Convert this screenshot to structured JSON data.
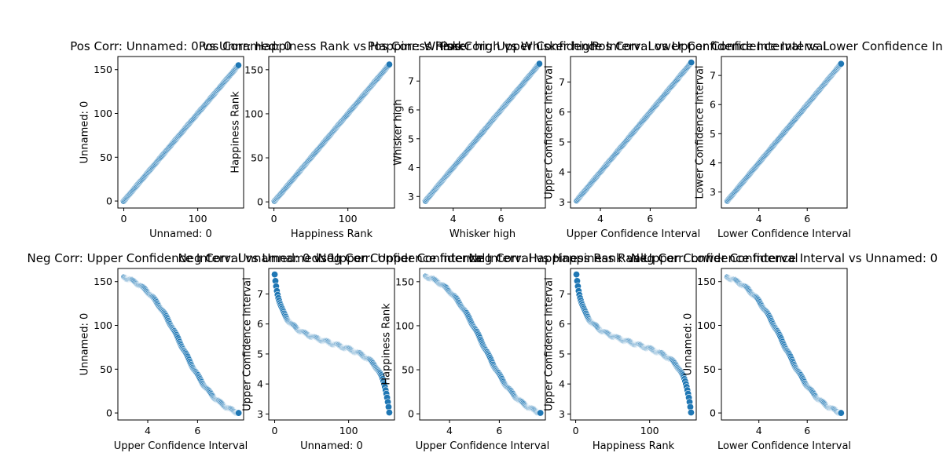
{
  "chart_data": [
    {
      "type": "scatter",
      "title": "Pos Corr: Unnamed: 0 vs Unnamed: 0",
      "xlabel": "Unnamed: 0",
      "ylabel": "Unnamed: 0",
      "xlim": [
        -8,
        162
      ],
      "ylim": [
        -8,
        165
      ],
      "xticks": [
        0,
        100
      ],
      "xticklabels": [
        "0",
        "100"
      ],
      "yticks": [
        0,
        50,
        100,
        150
      ],
      "yticklabels": [
        "0",
        "50",
        "100",
        "150"
      ],
      "series": [
        {
          "x_range": [
            0,
            155
          ],
          "y_range": [
            0,
            155
          ],
          "shape": "linear",
          "n": 156
        }
      ]
    },
    {
      "type": "scatter",
      "title": "Pos Corr: Happiness Rank vs Happiness Rank",
      "xlabel": "Happiness Rank",
      "ylabel": "Happiness Rank",
      "xlim": [
        -7,
        163
      ],
      "ylim": [
        -7,
        165
      ],
      "xticks": [
        0,
        100
      ],
      "xticklabels": [
        "0",
        "100"
      ],
      "yticks": [
        0,
        50,
        100,
        150
      ],
      "yticklabels": [
        "0",
        "50",
        "100",
        "150"
      ],
      "series": [
        {
          "x_range": [
            1,
            156
          ],
          "y_range": [
            1,
            156
          ],
          "shape": "linear",
          "n": 156
        }
      ]
    },
    {
      "type": "scatter",
      "title": "Pos Corr: Whisker high vs Whisker high",
      "xlabel": "Whisker high",
      "ylabel": "Whisker high",
      "xlim": [
        2.6,
        7.85
      ],
      "ylim": [
        2.6,
        7.85
      ],
      "xticks": [
        4,
        6
      ],
      "xticklabels": [
        "4",
        "6"
      ],
      "yticks": [
        3,
        4,
        5,
        6,
        7
      ],
      "yticklabels": [
        "3",
        "4",
        "5",
        "6",
        "7"
      ],
      "series": [
        {
          "x_range": [
            2.85,
            7.6
          ],
          "y_range": [
            2.85,
            7.6
          ],
          "shape": "linear",
          "n": 156
        }
      ]
    },
    {
      "type": "scatter",
      "title": "Pos Corr: Upper Confidence Interval vs Upper Confidence Interval",
      "xlabel": "Upper Confidence Interval",
      "ylabel": "Upper Confidence Interval",
      "xlim": [
        2.8,
        7.85
      ],
      "ylim": [
        2.8,
        7.85
      ],
      "xticks": [
        4,
        6
      ],
      "xticklabels": [
        "4",
        "6"
      ],
      "yticks": [
        3,
        4,
        5,
        6,
        7
      ],
      "yticklabels": [
        "3",
        "4",
        "5",
        "6",
        "7"
      ],
      "series": [
        {
          "x_range": [
            3.05,
            7.65
          ],
          "y_range": [
            3.05,
            7.65
          ],
          "shape": "linear",
          "n": 156
        }
      ]
    },
    {
      "type": "scatter",
      "title": "Pos Corr: Lower Confidence Interval vs Lower Confidence Interval",
      "xlabel": "Lower Confidence Interval",
      "ylabel": "Lower Confidence Interval",
      "xlim": [
        2.45,
        7.65
      ],
      "ylim": [
        2.45,
        7.65
      ],
      "xticks": [
        4,
        6
      ],
      "xticklabels": [
        "4",
        "6"
      ],
      "yticks": [
        3,
        4,
        5,
        6,
        7
      ],
      "yticklabels": [
        "3",
        "4",
        "5",
        "6",
        "7"
      ],
      "series": [
        {
          "x_range": [
            2.7,
            7.4
          ],
          "y_range": [
            2.7,
            7.4
          ],
          "shape": "linear",
          "n": 156
        }
      ]
    },
    {
      "type": "scatter",
      "title": "Neg Corr: Upper Confidence Interval vs Unnamed: 0",
      "xlabel": "Upper Confidence Interval",
      "ylabel": "Unnamed: 0",
      "xlim": [
        2.8,
        7.85
      ],
      "ylim": [
        -8,
        165
      ],
      "xticks": [
        4,
        6
      ],
      "xticklabels": [
        "4",
        "6"
      ],
      "yticks": [
        0,
        50,
        100,
        150
      ],
      "yticklabels": [
        "0",
        "50",
        "100",
        "150"
      ],
      "series": [
        {
          "x_range": [
            3.05,
            7.65
          ],
          "y_range": [
            155,
            0
          ],
          "shape": "sigmoid",
          "n": 156
        }
      ]
    },
    {
      "type": "scatter",
      "title": "Neg Corr: Unnamed: 0 vs Upper Confidence Interval",
      "xlabel": "Unnamed: 0",
      "ylabel": "Upper Confidence Interval",
      "xlim": [
        -8,
        162
      ],
      "ylim": [
        2.8,
        7.85
      ],
      "xticks": [
        0,
        100
      ],
      "xticklabels": [
        "0",
        "100"
      ],
      "yticks": [
        3,
        4,
        5,
        6,
        7
      ],
      "yticklabels": [
        "3",
        "4",
        "5",
        "6",
        "7"
      ],
      "series": [
        {
          "x_range": [
            0,
            155
          ],
          "y_range": [
            7.65,
            3.05
          ],
          "shape": "inverse-sigmoid",
          "n": 156
        }
      ]
    },
    {
      "type": "scatter",
      "title": "Neg Corr: Upper Confidence Interval vs Happiness Rank",
      "xlabel": "Upper Confidence Interval",
      "ylabel": "Happiness Rank",
      "xlim": [
        2.8,
        7.85
      ],
      "ylim": [
        -7,
        165
      ],
      "xticks": [
        4,
        6
      ],
      "xticklabels": [
        "4",
        "6"
      ],
      "yticks": [
        0,
        50,
        100,
        150
      ],
      "yticklabels": [
        "0",
        "50",
        "100",
        "150"
      ],
      "series": [
        {
          "x_range": [
            3.05,
            7.65
          ],
          "y_range": [
            156,
            1
          ],
          "shape": "sigmoid",
          "n": 156
        }
      ]
    },
    {
      "type": "scatter",
      "title": "Neg Corr: Happiness Rank vs Upper Confidence Interval",
      "xlabel": "Happiness Rank",
      "ylabel": "Upper Confidence Interval",
      "xlim": [
        -7,
        163
      ],
      "ylim": [
        2.8,
        7.85
      ],
      "xticks": [
        0,
        100
      ],
      "xticklabels": [
        "0",
        "100"
      ],
      "yticks": [
        3,
        4,
        5,
        6,
        7
      ],
      "yticklabels": [
        "3",
        "4",
        "5",
        "6",
        "7"
      ],
      "series": [
        {
          "x_range": [
            1,
            156
          ],
          "y_range": [
            7.65,
            3.05
          ],
          "shape": "inverse-sigmoid",
          "n": 156
        }
      ]
    },
    {
      "type": "scatter",
      "title": "Neg Corr: Lower Confidence Interval vs Unnamed: 0",
      "xlabel": "Lower Confidence Interval",
      "ylabel": "Unnamed: 0",
      "xlim": [
        2.45,
        7.65
      ],
      "ylim": [
        -8,
        165
      ],
      "xticks": [
        4,
        6
      ],
      "xticklabels": [
        "4",
        "6"
      ],
      "yticks": [
        0,
        50,
        100,
        150
      ],
      "yticklabels": [
        "0",
        "50",
        "100",
        "150"
      ],
      "series": [
        {
          "x_range": [
            2.7,
            7.4
          ],
          "y_range": [
            155,
            0
          ],
          "shape": "sigmoid",
          "n": 156
        }
      ]
    }
  ],
  "colors": {
    "marker": "#1f77b4",
    "marker_edge": "#ffffff"
  }
}
